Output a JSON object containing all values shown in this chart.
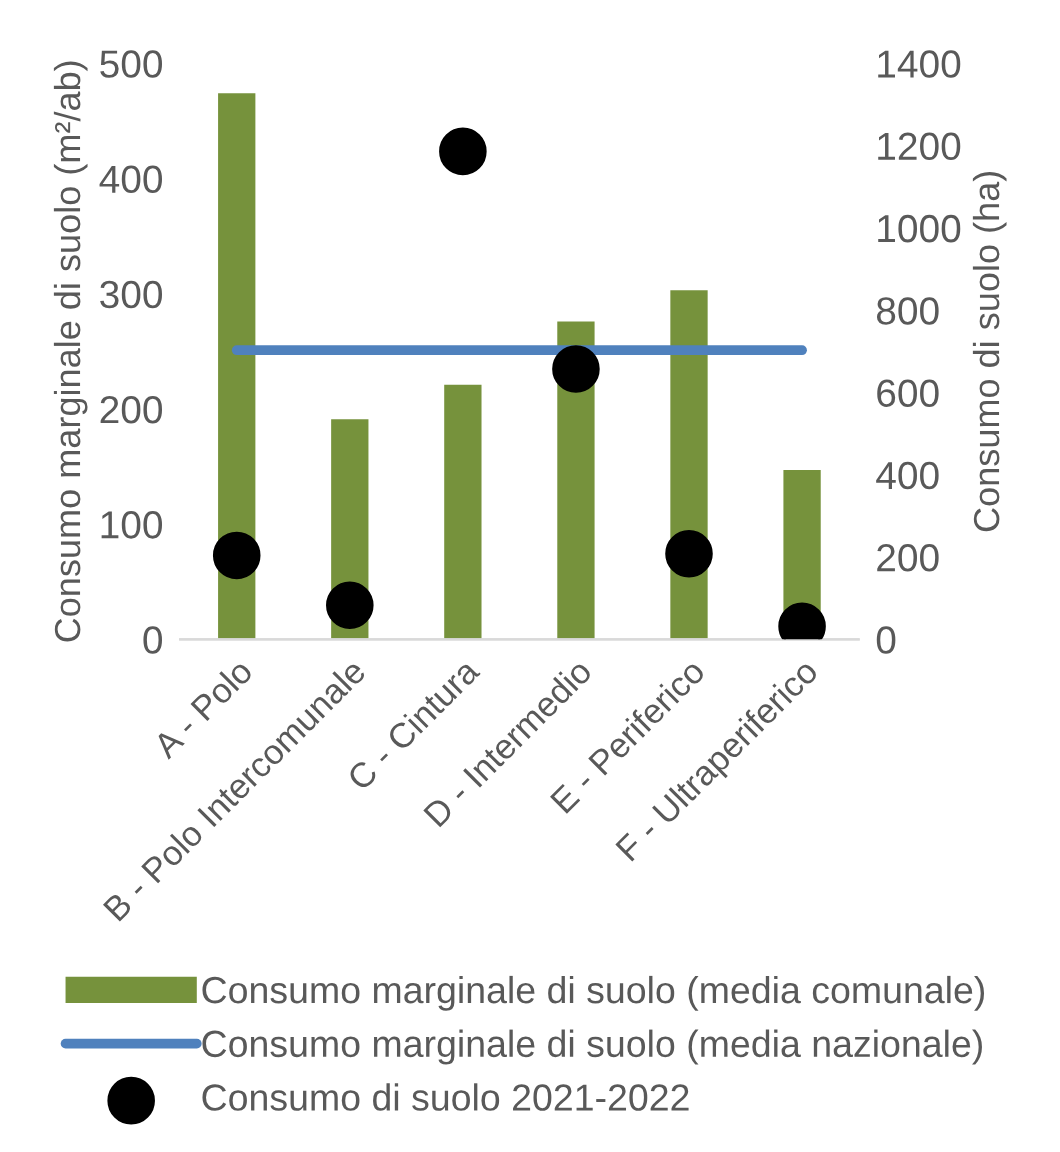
{
  "chart_data": {
    "type": "bar",
    "categories": [
      "A - Polo",
      "B - Polo Intercomunale",
      "C - Cintura",
      "D - Intermedio",
      "E - Periferico",
      "F - Ultraperiferico"
    ],
    "ylabel": "Consumo marginale di suolo (m²/ab)",
    "y2label": "Consumo di suolo (ha)",
    "ylim": [
      0,
      500
    ],
    "yticks": [
      0,
      100,
      200,
      300,
      400,
      500
    ],
    "y2lim": [
      0,
      1400
    ],
    "y2ticks": [
      0,
      200,
      400,
      600,
      800,
      1000,
      1200,
      1400
    ],
    "grid": false,
    "legend": "bottom",
    "series": [
      {
        "name": "Consumo marginale di suolo (media comunale)",
        "color": "#76923c",
        "values": [
          474,
          191,
          221,
          276,
          303,
          147
        ]
      },
      {
        "name": "Consumo marginale di suolo (media nazionale)",
        "type": "line",
        "color": "#4f81bd",
        "values": [
          251,
          251,
          251,
          251,
          251,
          251
        ]
      },
      {
        "name": "Consumo di suolo 2021-2022",
        "type": "scatter",
        "axis": "y2",
        "color": "#000000",
        "marker": "circle",
        "values": [
          204,
          83,
          1186,
          657,
          208,
          32
        ]
      }
    ]
  }
}
